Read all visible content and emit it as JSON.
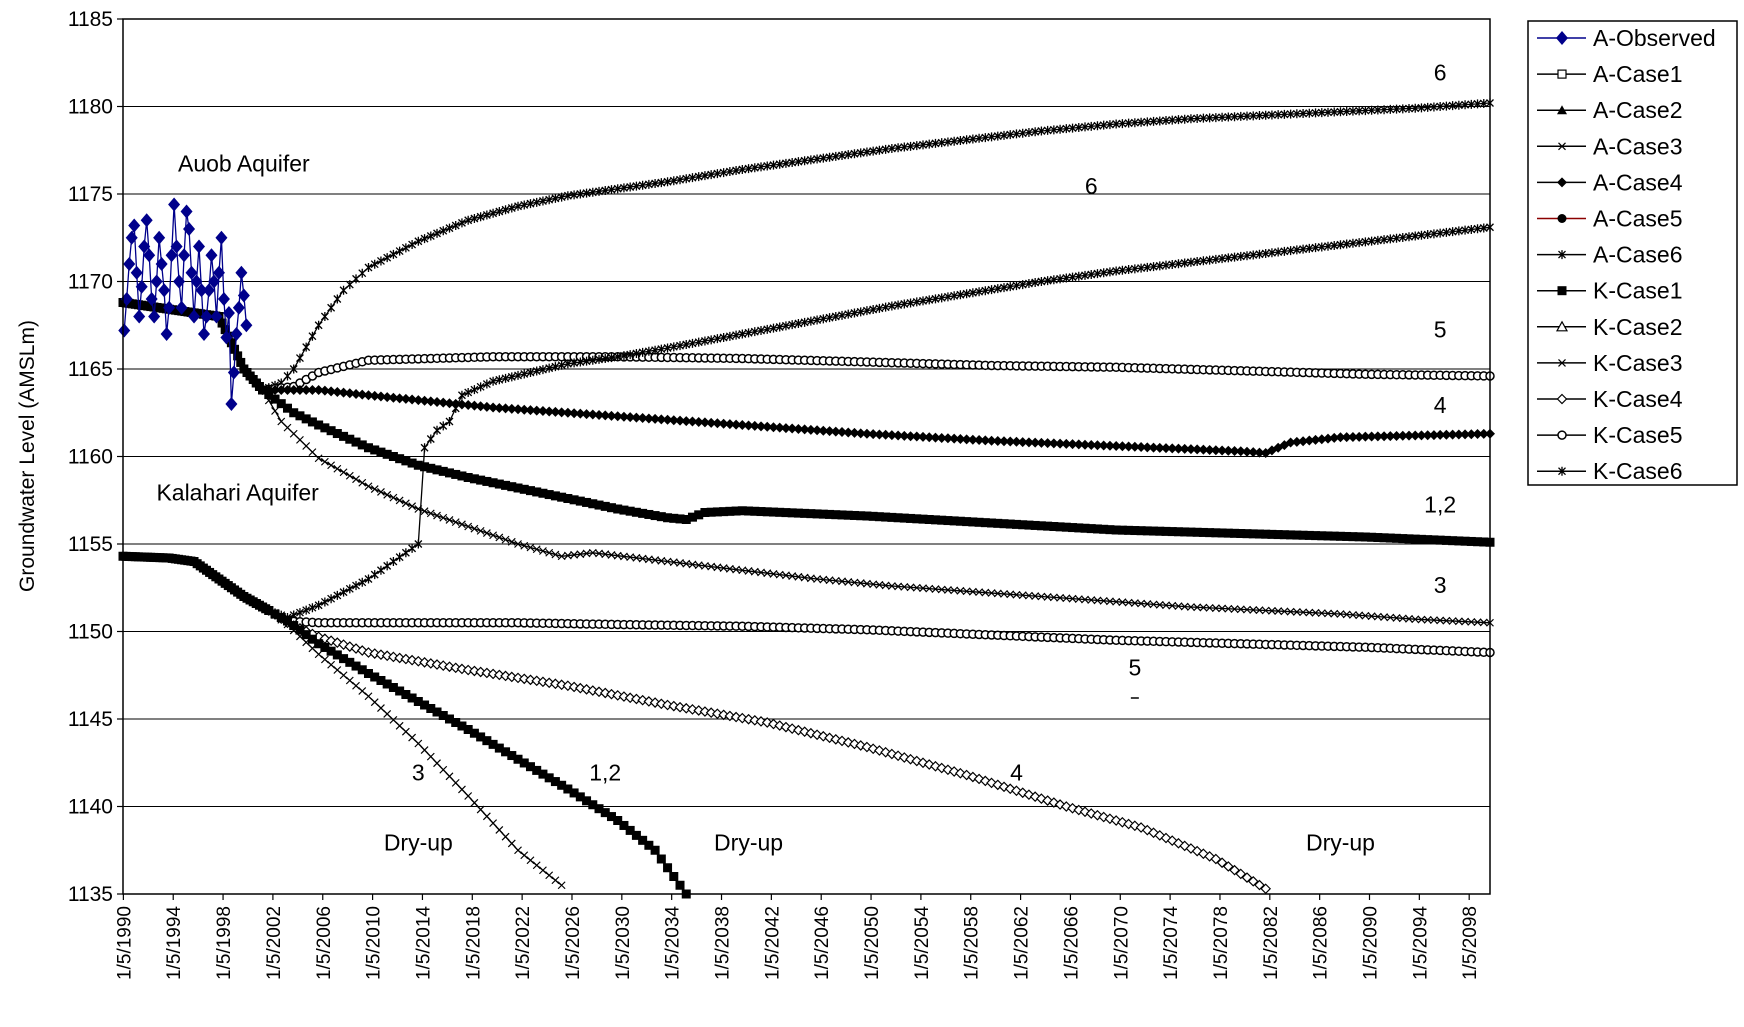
{
  "chart_data": {
    "type": "line",
    "title": "",
    "xlabel": "",
    "ylabel": "Groundwater Level (AMSLm)",
    "ylim": [
      1135,
      1185
    ],
    "yticks": [
      1135,
      1140,
      1145,
      1150,
      1155,
      1160,
      1165,
      1170,
      1175,
      1180,
      1185
    ],
    "xlim": [
      1990.3,
      2100.0
    ],
    "xtick_years": [
      1990,
      1994,
      1998,
      2002,
      2006,
      2010,
      2014,
      2018,
      2022,
      2026,
      2030,
      2034,
      2038,
      2042,
      2046,
      2050,
      2054,
      2058,
      2062,
      2066,
      2070,
      2074,
      2078,
      2082,
      2086,
      2090,
      2094,
      2098
    ],
    "xtick_prefix": "1/5/",
    "grid": "horizontal",
    "legend_position": "right",
    "legend": [
      "A-Observed",
      "A-Case1",
      "A-Case2",
      "A-Case3",
      "A-Case4",
      "A-Case5",
      "A-Case6",
      "K-Case1",
      "K-Case2",
      "K-Case3",
      "K-Case4",
      "K-Case5",
      "K-Case6"
    ],
    "observed": {
      "name": "A-Observed",
      "color": "#00008B",
      "points": [
        [
          1990.4,
          1167.2
        ],
        [
          1990.6,
          1169.0
        ],
        [
          1990.8,
          1171.0
        ],
        [
          1991.0,
          1172.5
        ],
        [
          1991.2,
          1173.2
        ],
        [
          1991.4,
          1170.5
        ],
        [
          1991.6,
          1168.0
        ],
        [
          1991.8,
          1169.7
        ],
        [
          1992.0,
          1172.0
        ],
        [
          1992.2,
          1173.5
        ],
        [
          1992.4,
          1171.5
        ],
        [
          1992.6,
          1169.0
        ],
        [
          1992.8,
          1168.0
        ],
        [
          1993.0,
          1170.0
        ],
        [
          1993.2,
          1172.5
        ],
        [
          1993.4,
          1171.0
        ],
        [
          1993.6,
          1169.5
        ],
        [
          1993.8,
          1167.0
        ],
        [
          1994.0,
          1168.5
        ],
        [
          1994.2,
          1171.5
        ],
        [
          1994.4,
          1174.4
        ],
        [
          1994.6,
          1172.0
        ],
        [
          1994.8,
          1170.0
        ],
        [
          1995.0,
          1168.5
        ],
        [
          1995.2,
          1171.5
        ],
        [
          1995.4,
          1174.0
        ],
        [
          1995.6,
          1173.0
        ],
        [
          1995.8,
          1170.5
        ],
        [
          1996.0,
          1168.0
        ],
        [
          1996.2,
          1170.0
        ],
        [
          1996.4,
          1172.0
        ],
        [
          1996.6,
          1169.5
        ],
        [
          1996.8,
          1167.0
        ],
        [
          1997.0,
          1168.0
        ],
        [
          1997.2,
          1169.5
        ],
        [
          1997.4,
          1171.5
        ],
        [
          1997.6,
          1170.0
        ],
        [
          1997.8,
          1168.0
        ],
        [
          1998.0,
          1170.5
        ],
        [
          1998.2,
          1172.5
        ],
        [
          1998.4,
          1169.0
        ],
        [
          1998.6,
          1166.8
        ],
        [
          1998.8,
          1168.2
        ],
        [
          1999.0,
          1163.0
        ],
        [
          1999.2,
          1164.8
        ],
        [
          1999.4,
          1167.0
        ],
        [
          1999.6,
          1168.5
        ],
        [
          1999.8,
          1170.5
        ],
        [
          2000.0,
          1169.2
        ],
        [
          2000.2,
          1167.5
        ]
      ]
    },
    "series": [
      {
        "name": "A-Case6",
        "marker": "star",
        "values": [
          [
            1990.3,
            1168.8
          ],
          [
            1998.0,
            1168.0
          ],
          [
            2000.0,
            1165.0
          ],
          [
            2001.5,
            1163.8
          ],
          [
            2003.0,
            1164.2
          ],
          [
            2004.0,
            1165.0
          ],
          [
            2006.0,
            1167.5
          ],
          [
            2008.0,
            1169.5
          ],
          [
            2010.0,
            1170.8
          ],
          [
            2014.0,
            1172.3
          ],
          [
            2018.0,
            1173.5
          ],
          [
            2022.0,
            1174.3
          ],
          [
            2026.0,
            1174.9
          ],
          [
            2030.0,
            1175.3
          ],
          [
            2034.0,
            1175.7
          ],
          [
            2040.0,
            1176.4
          ],
          [
            2046.0,
            1177.0
          ],
          [
            2052.0,
            1177.6
          ],
          [
            2058.0,
            1178.1
          ],
          [
            2064.0,
            1178.6
          ],
          [
            2070.0,
            1179.0
          ],
          [
            2076.0,
            1179.3
          ],
          [
            2082.0,
            1179.5
          ],
          [
            2088.0,
            1179.7
          ],
          [
            2094.0,
            1179.9
          ],
          [
            2100.0,
            1180.2
          ]
        ]
      },
      {
        "name": "A-Case5",
        "marker": "circle",
        "values": [
          [
            1990.3,
            1168.8
          ],
          [
            1998.0,
            1168.0
          ],
          [
            2000.0,
            1165.0
          ],
          [
            2001.5,
            1163.8
          ],
          [
            2004.0,
            1164.0
          ],
          [
            2006.0,
            1164.8
          ],
          [
            2010.0,
            1165.5
          ],
          [
            2020.0,
            1165.7
          ],
          [
            2030.0,
            1165.7
          ],
          [
            2040.0,
            1165.6
          ],
          [
            2050.0,
            1165.4
          ],
          [
            2060.0,
            1165.2
          ],
          [
            2070.0,
            1165.1
          ],
          [
            2080.0,
            1164.9
          ],
          [
            2090.0,
            1164.7
          ],
          [
            2100.0,
            1164.6
          ]
        ]
      },
      {
        "name": "A-Case4",
        "marker": "diamond",
        "values": [
          [
            1990.3,
            1168.8
          ],
          [
            1998.0,
            1168.0
          ],
          [
            2000.0,
            1165.0
          ],
          [
            2001.5,
            1163.8
          ],
          [
            2006.0,
            1163.8
          ],
          [
            2010.0,
            1163.5
          ],
          [
            2020.0,
            1162.8
          ],
          [
            2030.0,
            1162.3
          ],
          [
            2040.0,
            1161.8
          ],
          [
            2050.0,
            1161.3
          ],
          [
            2060.0,
            1160.9
          ],
          [
            2070.0,
            1160.6
          ],
          [
            2080.0,
            1160.3
          ],
          [
            2082.0,
            1160.2
          ],
          [
            2084.0,
            1160.8
          ],
          [
            2088.0,
            1161.1
          ],
          [
            2094.0,
            1161.2
          ],
          [
            2100.0,
            1161.3
          ]
        ]
      },
      {
        "name": "A-Case1",
        "marker": "square-filled",
        "values": [
          [
            1990.3,
            1168.8
          ],
          [
            1998.0,
            1168.0
          ],
          [
            2000.0,
            1165.0
          ],
          [
            2001.5,
            1163.8
          ],
          [
            2004.0,
            1162.5
          ],
          [
            2006.0,
            1161.8
          ],
          [
            2010.0,
            1160.5
          ],
          [
            2014.0,
            1159.5
          ],
          [
            2018.0,
            1158.8
          ],
          [
            2022.0,
            1158.2
          ],
          [
            2026.0,
            1157.6
          ],
          [
            2030.0,
            1157.0
          ],
          [
            2034.0,
            1156.5
          ],
          [
            2035.5,
            1156.4
          ],
          [
            2037.0,
            1156.8
          ],
          [
            2040.0,
            1156.9
          ],
          [
            2050.0,
            1156.6
          ],
          [
            2060.0,
            1156.2
          ],
          [
            2070.0,
            1155.8
          ],
          [
            2080.0,
            1155.6
          ],
          [
            2090.0,
            1155.4
          ],
          [
            2100.0,
            1155.1
          ]
        ]
      },
      {
        "name": "A-Case3",
        "marker": "x",
        "values": [
          [
            1990.3,
            1168.8
          ],
          [
            1998.0,
            1168.0
          ],
          [
            2000.0,
            1165.0
          ],
          [
            2001.5,
            1163.8
          ],
          [
            2003.0,
            1162.0
          ],
          [
            2006.0,
            1159.9
          ],
          [
            2010.0,
            1158.3
          ],
          [
            2014.0,
            1157.0
          ],
          [
            2018.0,
            1156.0
          ],
          [
            2022.0,
            1155.0
          ],
          [
            2025.5,
            1154.3
          ],
          [
            2028.0,
            1154.5
          ],
          [
            2034.0,
            1154.0
          ],
          [
            2040.0,
            1153.5
          ],
          [
            2046.0,
            1153.0
          ],
          [
            2052.0,
            1152.6
          ],
          [
            2058.0,
            1152.3
          ],
          [
            2064.0,
            1152.0
          ],
          [
            2070.0,
            1151.7
          ],
          [
            2076.0,
            1151.4
          ],
          [
            2082.0,
            1151.2
          ],
          [
            2088.0,
            1151.0
          ],
          [
            2094.0,
            1150.7
          ],
          [
            2100.0,
            1150.5
          ]
        ]
      },
      {
        "name": "K-Case6",
        "marker": "star",
        "values": [
          [
            1990.3,
            1154.3
          ],
          [
            1994.0,
            1154.2
          ],
          [
            1996.0,
            1154.0
          ],
          [
            1998.0,
            1153.0
          ],
          [
            2000.0,
            1152.0
          ],
          [
            2002.0,
            1151.2
          ],
          [
            2003.5,
            1150.8
          ],
          [
            2006.0,
            1151.5
          ],
          [
            2010.0,
            1153.0
          ],
          [
            2014.0,
            1155.0
          ],
          [
            2014.5,
            1160.5
          ],
          [
            2015.5,
            1161.5
          ],
          [
            2016.5,
            1162.0
          ],
          [
            2017.5,
            1163.5
          ],
          [
            2020.0,
            1164.3
          ],
          [
            2026.0,
            1165.3
          ],
          [
            2030.0,
            1165.7
          ],
          [
            2034.0,
            1166.2
          ],
          [
            2040.0,
            1167.0
          ],
          [
            2046.0,
            1167.8
          ],
          [
            2052.0,
            1168.6
          ],
          [
            2058.0,
            1169.3
          ],
          [
            2064.0,
            1170.0
          ],
          [
            2070.0,
            1170.6
          ],
          [
            2076.0,
            1171.1
          ],
          [
            2082.0,
            1171.6
          ],
          [
            2088.0,
            1172.1
          ],
          [
            2094.0,
            1172.6
          ],
          [
            2100.0,
            1173.1
          ]
        ]
      },
      {
        "name": "K-Case5",
        "marker": "circle",
        "values": [
          [
            1990.3,
            1154.3
          ],
          [
            1994.0,
            1154.2
          ],
          [
            1996.0,
            1154.0
          ],
          [
            1998.0,
            1153.0
          ],
          [
            2000.0,
            1152.0
          ],
          [
            2002.0,
            1151.2
          ],
          [
            2003.5,
            1150.6
          ],
          [
            2006.0,
            1150.5
          ],
          [
            2014.0,
            1150.5
          ],
          [
            2022.0,
            1150.5
          ],
          [
            2030.0,
            1150.4
          ],
          [
            2040.0,
            1150.3
          ],
          [
            2050.0,
            1150.1
          ],
          [
            2060.0,
            1149.8
          ],
          [
            2070.0,
            1149.5
          ],
          [
            2080.0,
            1149.3
          ],
          [
            2090.0,
            1149.1
          ],
          [
            2100.0,
            1148.8
          ]
        ]
      },
      {
        "name": "K-Case4",
        "marker": "diamond-open",
        "values": [
          [
            1990.3,
            1154.3
          ],
          [
            1994.0,
            1154.2
          ],
          [
            1996.0,
            1154.0
          ],
          [
            1998.0,
            1153.0
          ],
          [
            2000.0,
            1152.0
          ],
          [
            2002.0,
            1151.2
          ],
          [
            2003.5,
            1150.5
          ],
          [
            2006.0,
            1149.7
          ],
          [
            2010.0,
            1148.8
          ],
          [
            2018.0,
            1147.8
          ],
          [
            2026.0,
            1146.9
          ],
          [
            2034.0,
            1145.8
          ],
          [
            2042.0,
            1144.8
          ],
          [
            2050.0,
            1143.4
          ],
          [
            2058.0,
            1141.8
          ],
          [
            2066.0,
            1140.0
          ],
          [
            2072.0,
            1138.8
          ],
          [
            2078.0,
            1137.0
          ],
          [
            2082.0,
            1135.3
          ]
        ]
      },
      {
        "name": "K-Case1",
        "marker": "square-filled",
        "values": [
          [
            1990.3,
            1154.3
          ],
          [
            1994.0,
            1154.2
          ],
          [
            1996.0,
            1154.0
          ],
          [
            1998.0,
            1153.0
          ],
          [
            2000.0,
            1152.0
          ],
          [
            2002.0,
            1151.2
          ],
          [
            2003.5,
            1150.6
          ],
          [
            2006.0,
            1149.3
          ],
          [
            2010.0,
            1147.6
          ],
          [
            2014.0,
            1146.0
          ],
          [
            2018.0,
            1144.4
          ],
          [
            2022.0,
            1142.7
          ],
          [
            2026.0,
            1141.0
          ],
          [
            2030.0,
            1139.2
          ],
          [
            2033.0,
            1137.5
          ],
          [
            2035.5,
            1135.0
          ]
        ]
      },
      {
        "name": "K-Case3",
        "marker": "x",
        "values": [
          [
            1990.3,
            1154.3
          ],
          [
            1994.0,
            1154.2
          ],
          [
            1996.0,
            1154.0
          ],
          [
            1998.0,
            1153.0
          ],
          [
            2000.0,
            1152.0
          ],
          [
            2002.0,
            1151.2
          ],
          [
            2003.5,
            1150.4
          ],
          [
            2006.0,
            1148.7
          ],
          [
            2010.0,
            1146.3
          ],
          [
            2014.0,
            1143.6
          ],
          [
            2018.0,
            1140.6
          ],
          [
            2022.0,
            1137.5
          ],
          [
            2025.5,
            1135.5
          ]
        ]
      }
    ],
    "annotations": [
      {
        "text": "Auob Aquifer",
        "x": 2000.0,
        "y": 1176.3
      },
      {
        "text": "Kalahari Aquifer",
        "x": 1999.5,
        "y": 1157.5
      },
      {
        "text": "6",
        "x": 2096.0,
        "y": 1181.5
      },
      {
        "text": "6",
        "x": 2068.0,
        "y": 1175.0
      },
      {
        "text": "5",
        "x": 2096.0,
        "y": 1166.8
      },
      {
        "text": "4",
        "x": 2096.0,
        "y": 1162.5
      },
      {
        "text": "1,2",
        "x": 2096.0,
        "y": 1156.8
      },
      {
        "text": "3",
        "x": 2096.0,
        "y": 1152.2
      },
      {
        "text": "5",
        "x": 2071.5,
        "y": 1147.5
      },
      {
        "text": "4",
        "x": 2062.0,
        "y": 1141.5
      },
      {
        "text": "1,2",
        "x": 2029.0,
        "y": 1141.5
      },
      {
        "text": "3",
        "x": 2014.0,
        "y": 1141.5
      },
      {
        "text": "Dry-up",
        "x": 2014.0,
        "y": 1137.5
      },
      {
        "text": "Dry-up",
        "x": 2040.5,
        "y": 1137.5
      },
      {
        "text": "Dry-up",
        "x": 2088.0,
        "y": 1137.5
      }
    ]
  }
}
